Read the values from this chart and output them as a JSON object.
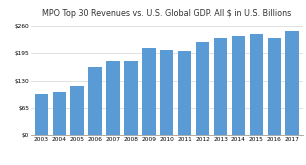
{
  "title": "MPO Top 30 Revenues vs. U.S. Global GDP. All $ in U.S. Billions",
  "years": [
    "2003",
    "2004",
    "2005",
    "2006",
    "2007",
    "2008",
    "2009",
    "2010",
    "2011",
    "2012",
    "2013",
    "2014",
    "2015",
    "2016",
    "2017"
  ],
  "values": [
    98,
    103,
    118,
    163,
    178,
    177,
    208,
    203,
    200,
    222,
    232,
    237,
    242,
    232,
    248
  ],
  "bar_color": "#5b9bd5",
  "yticks": [
    0,
    65,
    130,
    195,
    260
  ],
  "ylim": [
    0,
    275
  ],
  "background_color": "#ffffff",
  "title_fontsize": 5.8,
  "tick_fontsize": 4.2
}
